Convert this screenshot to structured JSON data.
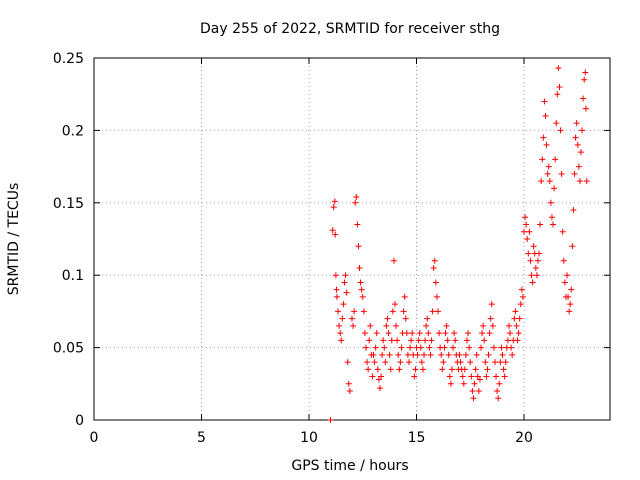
{
  "chart_data": {
    "type": "scatter",
    "title": "Day 255 of 2022, SRMTID for receiver sthg",
    "xlabel": "GPS time / hours",
    "ylabel": "SRMTID / TECUs",
    "xlim": [
      0,
      24
    ],
    "ylim": [
      0,
      0.25
    ],
    "xticks": [
      0,
      5,
      10,
      15,
      20
    ],
    "xtick_labels": [
      "0",
      "5",
      "10",
      "15",
      "20"
    ],
    "yticks": [
      0,
      0.05,
      0.1,
      0.15,
      0.2,
      0.25
    ],
    "ytick_labels": [
      "0",
      "0.05",
      "0.1",
      "0.15",
      "0.2",
      "0.25"
    ],
    "grid": true,
    "marker": "+",
    "series": [
      {
        "name": "sthg",
        "color": "#ff0000",
        "points": [
          [
            11.0,
            0.0
          ],
          [
            11.1,
            0.131
          ],
          [
            11.15,
            0.147
          ],
          [
            11.2,
            0.151
          ],
          [
            11.22,
            0.128
          ],
          [
            11.25,
            0.1
          ],
          [
            11.28,
            0.09
          ],
          [
            11.3,
            0.085
          ],
          [
            11.35,
            0.075
          ],
          [
            11.4,
            0.065
          ],
          [
            11.45,
            0.06
          ],
          [
            11.5,
            0.055
          ],
          [
            11.55,
            0.07
          ],
          [
            11.6,
            0.08
          ],
          [
            11.65,
            0.095
          ],
          [
            11.7,
            0.1
          ],
          [
            11.75,
            0.088
          ],
          [
            11.8,
            0.04
          ],
          [
            11.85,
            0.025
          ],
          [
            11.9,
            0.02
          ],
          [
            12.0,
            0.07
          ],
          [
            12.05,
            0.065
          ],
          [
            12.1,
            0.075
          ],
          [
            12.15,
            0.15
          ],
          [
            12.2,
            0.154
          ],
          [
            12.25,
            0.135
          ],
          [
            12.3,
            0.12
          ],
          [
            12.35,
            0.105
          ],
          [
            12.4,
            0.095
          ],
          [
            12.45,
            0.09
          ],
          [
            12.5,
            0.085
          ],
          [
            12.55,
            0.075
          ],
          [
            12.6,
            0.06
          ],
          [
            12.65,
            0.05
          ],
          [
            12.7,
            0.04
          ],
          [
            12.75,
            0.035
          ],
          [
            12.8,
            0.055
          ],
          [
            12.85,
            0.065
          ],
          [
            12.9,
            0.045
          ],
          [
            12.95,
            0.03
          ],
          [
            13.0,
            0.045
          ],
          [
            13.05,
            0.04
          ],
          [
            13.1,
            0.05
          ],
          [
            13.15,
            0.06
          ],
          [
            13.2,
            0.035
          ],
          [
            13.25,
            0.028
          ],
          [
            13.3,
            0.022
          ],
          [
            13.35,
            0.03
          ],
          [
            13.4,
            0.045
          ],
          [
            13.45,
            0.055
          ],
          [
            13.5,
            0.05
          ],
          [
            13.55,
            0.04
          ],
          [
            13.6,
            0.065
          ],
          [
            13.65,
            0.07
          ],
          [
            13.7,
            0.06
          ],
          [
            13.75,
            0.045
          ],
          [
            13.8,
            0.035
          ],
          [
            13.85,
            0.055
          ],
          [
            13.9,
            0.075
          ],
          [
            13.95,
            0.11
          ],
          [
            14.0,
            0.08
          ],
          [
            14.05,
            0.065
          ],
          [
            14.1,
            0.055
          ],
          [
            14.15,
            0.045
          ],
          [
            14.2,
            0.035
          ],
          [
            14.25,
            0.04
          ],
          [
            14.3,
            0.05
          ],
          [
            14.35,
            0.06
          ],
          [
            14.4,
            0.075
          ],
          [
            14.45,
            0.085
          ],
          [
            14.5,
            0.07
          ],
          [
            14.55,
            0.06
          ],
          [
            14.6,
            0.045
          ],
          [
            14.65,
            0.04
          ],
          [
            14.7,
            0.05
          ],
          [
            14.75,
            0.055
          ],
          [
            14.8,
            0.06
          ],
          [
            14.85,
            0.045
          ],
          [
            14.9,
            0.03
          ],
          [
            14.95,
            0.035
          ],
          [
            15.0,
            0.05
          ],
          [
            15.05,
            0.045
          ],
          [
            15.1,
            0.055
          ],
          [
            15.15,
            0.06
          ],
          [
            15.2,
            0.05
          ],
          [
            15.25,
            0.04
          ],
          [
            15.3,
            0.035
          ],
          [
            15.35,
            0.045
          ],
          [
            15.4,
            0.055
          ],
          [
            15.45,
            0.065
          ],
          [
            15.5,
            0.07
          ],
          [
            15.55,
            0.06
          ],
          [
            15.6,
            0.05
          ],
          [
            15.65,
            0.045
          ],
          [
            15.7,
            0.055
          ],
          [
            15.75,
            0.075
          ],
          [
            15.8,
            0.105
          ],
          [
            15.85,
            0.11
          ],
          [
            15.9,
            0.095
          ],
          [
            15.95,
            0.085
          ],
          [
            16.0,
            0.075
          ],
          [
            16.05,
            0.06
          ],
          [
            16.1,
            0.05
          ],
          [
            16.15,
            0.045
          ],
          [
            16.2,
            0.035
          ],
          [
            16.25,
            0.04
          ],
          [
            16.3,
            0.05
          ],
          [
            16.35,
            0.06
          ],
          [
            16.4,
            0.065
          ],
          [
            16.45,
            0.055
          ],
          [
            16.5,
            0.045
          ],
          [
            16.55,
            0.03
          ],
          [
            16.6,
            0.025
          ],
          [
            16.65,
            0.035
          ],
          [
            16.7,
            0.05
          ],
          [
            16.75,
            0.06
          ],
          [
            16.8,
            0.055
          ],
          [
            16.85,
            0.045
          ],
          [
            16.9,
            0.04
          ],
          [
            16.95,
            0.035
          ],
          [
            17.0,
            0.045
          ],
          [
            17.05,
            0.04
          ],
          [
            17.1,
            0.035
          ],
          [
            17.15,
            0.03
          ],
          [
            17.2,
            0.025
          ],
          [
            17.25,
            0.035
          ],
          [
            17.3,
            0.045
          ],
          [
            17.35,
            0.055
          ],
          [
            17.4,
            0.06
          ],
          [
            17.45,
            0.05
          ],
          [
            17.5,
            0.04
          ],
          [
            17.55,
            0.03
          ],
          [
            17.6,
            0.02
          ],
          [
            17.65,
            0.015
          ],
          [
            17.7,
            0.025
          ],
          [
            17.75,
            0.035
          ],
          [
            17.8,
            0.045
          ],
          [
            17.85,
            0.03
          ],
          [
            17.9,
            0.02
          ],
          [
            17.95,
            0.028
          ],
          [
            18.0,
            0.05
          ],
          [
            18.05,
            0.06
          ],
          [
            18.1,
            0.065
          ],
          [
            18.15,
            0.055
          ],
          [
            18.2,
            0.04
          ],
          [
            18.25,
            0.03
          ],
          [
            18.3,
            0.035
          ],
          [
            18.35,
            0.045
          ],
          [
            18.4,
            0.06
          ],
          [
            18.45,
            0.07
          ],
          [
            18.5,
            0.08
          ],
          [
            18.55,
            0.065
          ],
          [
            18.6,
            0.05
          ],
          [
            18.65,
            0.04
          ],
          [
            18.7,
            0.03
          ],
          [
            18.75,
            0.02
          ],
          [
            18.8,
            0.015
          ],
          [
            18.85,
            0.025
          ],
          [
            18.9,
            0.04
          ],
          [
            18.95,
            0.05
          ],
          [
            19.0,
            0.045
          ],
          [
            19.05,
            0.035
          ],
          [
            19.1,
            0.03
          ],
          [
            19.15,
            0.04
          ],
          [
            19.2,
            0.05
          ],
          [
            19.25,
            0.055
          ],
          [
            19.3,
            0.065
          ],
          [
            19.35,
            0.06
          ],
          [
            19.4,
            0.05
          ],
          [
            19.45,
            0.045
          ],
          [
            19.5,
            0.055
          ],
          [
            19.55,
            0.07
          ],
          [
            19.6,
            0.075
          ],
          [
            19.65,
            0.065
          ],
          [
            19.7,
            0.055
          ],
          [
            19.75,
            0.06
          ],
          [
            19.8,
            0.07
          ],
          [
            19.85,
            0.08
          ],
          [
            19.9,
            0.09
          ],
          [
            19.95,
            0.085
          ],
          [
            20.0,
            0.13
          ],
          [
            20.05,
            0.14
          ],
          [
            20.1,
            0.135
          ],
          [
            20.15,
            0.125
          ],
          [
            20.2,
            0.115
          ],
          [
            20.25,
            0.13
          ],
          [
            20.3,
            0.11
          ],
          [
            20.35,
            0.1
          ],
          [
            20.4,
            0.095
          ],
          [
            20.45,
            0.12
          ],
          [
            20.5,
            0.115
          ],
          [
            20.55,
            0.105
          ],
          [
            20.6,
            0.1
          ],
          [
            20.65,
            0.11
          ],
          [
            20.7,
            0.115
          ],
          [
            20.75,
            0.135
          ],
          [
            20.8,
            0.165
          ],
          [
            20.85,
            0.18
          ],
          [
            20.9,
            0.195
          ],
          [
            20.95,
            0.22
          ],
          [
            21.0,
            0.21
          ],
          [
            21.05,
            0.19
          ],
          [
            21.1,
            0.17
          ],
          [
            21.15,
            0.175
          ],
          [
            21.2,
            0.165
          ],
          [
            21.25,
            0.15
          ],
          [
            21.3,
            0.14
          ],
          [
            21.35,
            0.135
          ],
          [
            21.4,
            0.16
          ],
          [
            21.45,
            0.18
          ],
          [
            21.5,
            0.205
          ],
          [
            21.55,
            0.225
          ],
          [
            21.6,
            0.243
          ],
          [
            21.65,
            0.23
          ],
          [
            21.7,
            0.2
          ],
          [
            21.75,
            0.17
          ],
          [
            21.8,
            0.13
          ],
          [
            21.85,
            0.11
          ],
          [
            21.9,
            0.095
          ],
          [
            21.95,
            0.085
          ],
          [
            22.0,
            0.1
          ],
          [
            22.05,
            0.085
          ],
          [
            22.1,
            0.075
          ],
          [
            22.15,
            0.08
          ],
          [
            22.2,
            0.09
          ],
          [
            22.25,
            0.12
          ],
          [
            22.3,
            0.145
          ],
          [
            22.35,
            0.17
          ],
          [
            22.4,
            0.195
          ],
          [
            22.45,
            0.205
          ],
          [
            22.5,
            0.19
          ],
          [
            22.55,
            0.175
          ],
          [
            22.6,
            0.165
          ],
          [
            22.65,
            0.185
          ],
          [
            22.7,
            0.2
          ],
          [
            22.75,
            0.222
          ],
          [
            22.8,
            0.235
          ],
          [
            22.85,
            0.24
          ],
          [
            22.88,
            0.215
          ],
          [
            22.92,
            0.165
          ]
        ]
      }
    ]
  }
}
